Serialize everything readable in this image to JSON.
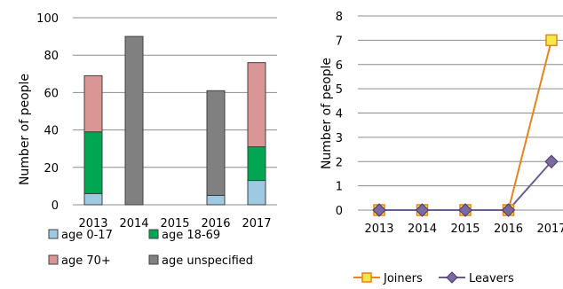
{
  "chart_data": [
    {
      "type": "bar",
      "stacked": true,
      "categories": [
        "2013",
        "2014",
        "2015",
        "2016",
        "2017"
      ],
      "ylabel": "Number of people",
      "ylim": [
        0,
        100
      ],
      "yticks": [
        "0",
        "20",
        "40",
        "60",
        "80",
        "100"
      ],
      "grid": true,
      "legend_position": "bottom",
      "series": [
        {
          "name": "age 0-17",
          "color": "#9ecae1",
          "values": [
            6,
            0,
            0,
            5,
            13
          ]
        },
        {
          "name": "age 18-69",
          "color": "#00a651",
          "values": [
            33,
            0,
            0,
            0,
            18
          ]
        },
        {
          "name": "age 70+",
          "color": "#d99694",
          "values": [
            30,
            0,
            0,
            0,
            45
          ]
        },
        {
          "name": "age unspecified",
          "color": "#808080",
          "values": [
            0,
            90,
            0,
            56,
            0
          ]
        }
      ]
    },
    {
      "type": "line",
      "categories": [
        "2013",
        "2014",
        "2015",
        "2016",
        "2017"
      ],
      "ylabel": "Number of people",
      "ylim": [
        0,
        8
      ],
      "yticks": [
        "0",
        "1",
        "2",
        "3",
        "4",
        "5",
        "6",
        "7",
        "8"
      ],
      "grid": true,
      "legend_position": "bottom",
      "series": [
        {
          "name": "Joiners",
          "color": "#e8821e",
          "marker": "square",
          "values": [
            0,
            0,
            0,
            0,
            7
          ]
        },
        {
          "name": "Leavers",
          "color": "#6b5b8e",
          "marker": "diamond",
          "values": [
            0,
            0,
            0,
            0,
            2
          ]
        }
      ]
    }
  ]
}
